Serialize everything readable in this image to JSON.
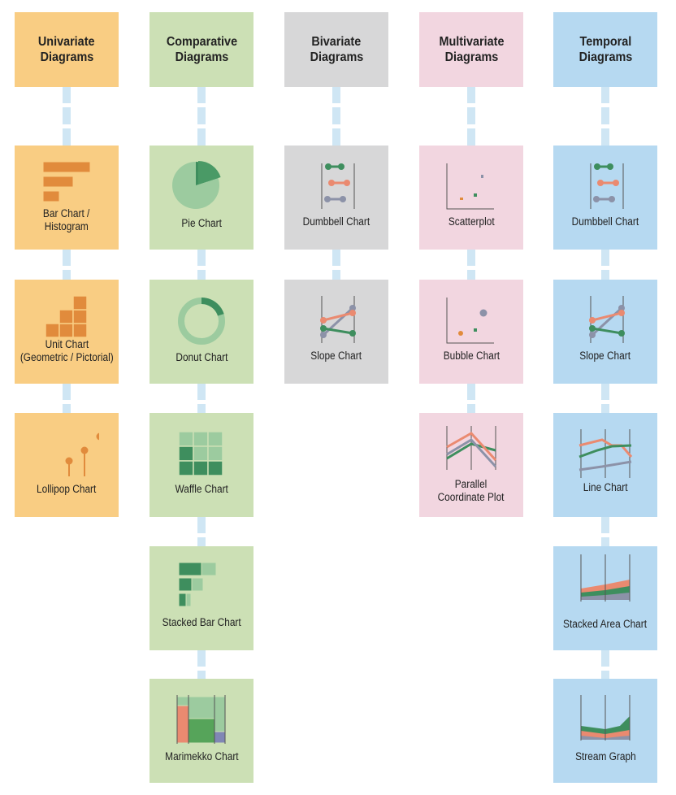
{
  "colors": {
    "univariate": "#f9cd83",
    "comparative": "#cce0b5",
    "bivariate": "#d7d7d8",
    "multivariate": "#f2d6e0",
    "temporal": "#b6d9f1",
    "orange": "#e18b3c",
    "green_dark": "#3e8e5e",
    "green_light": "#9ccb9f",
    "salmon": "#ea8a70",
    "slate": "#8c92a8",
    "connector": "#cfe6f4"
  },
  "columns": [
    {
      "header": [
        "Univariate",
        "Diagrams"
      ],
      "items": [
        {
          "label": [
            "Bar Chart /",
            "Histogram"
          ],
          "icon": "bar-chart-icon"
        },
        {
          "label": [
            "Unit Chart",
            "(Geometric / Pictorial)"
          ],
          "icon": "unit-chart-icon"
        },
        {
          "label": [
            "Lollipop Chart"
          ],
          "icon": "lollipop-chart-icon"
        }
      ]
    },
    {
      "header": [
        "Comparative",
        "Diagrams"
      ],
      "items": [
        {
          "label": [
            "Pie Chart"
          ],
          "icon": "pie-chart-icon"
        },
        {
          "label": [
            "Donut Chart"
          ],
          "icon": "donut-chart-icon"
        },
        {
          "label": [
            "Waffle Chart"
          ],
          "icon": "waffle-chart-icon"
        },
        {
          "label": [
            "Stacked Bar Chart"
          ],
          "icon": "stacked-bar-chart-icon"
        },
        {
          "label": [
            "Marimekko Chart"
          ],
          "icon": "marimekko-chart-icon"
        }
      ]
    },
    {
      "header": [
        "Bivariate",
        "Diagrams"
      ],
      "items": [
        {
          "label": [
            "Dumbbell Chart"
          ],
          "icon": "dumbbell-chart-icon"
        },
        {
          "label": [
            "Slope Chart"
          ],
          "icon": "slope-chart-icon"
        }
      ]
    },
    {
      "header": [
        "Multivariate",
        "Diagrams"
      ],
      "items": [
        {
          "label": [
            "Scatterplot"
          ],
          "icon": "scatterplot-icon"
        },
        {
          "label": [
            "Bubble Chart"
          ],
          "icon": "bubble-chart-icon"
        },
        {
          "label": [
            "Parallel",
            "Coordinate Plot"
          ],
          "icon": "parallel-coordinate-plot-icon"
        }
      ]
    },
    {
      "header": [
        "Temporal",
        "Diagrams"
      ],
      "items": [
        {
          "label": [
            "Dumbbell Chart"
          ],
          "icon": "dumbbell-chart-icon"
        },
        {
          "label": [
            "Slope Chart"
          ],
          "icon": "slope-chart-icon"
        },
        {
          "label": [
            "Line Chart"
          ],
          "icon": "line-chart-icon"
        },
        {
          "label": [
            "Stacked Area Chart"
          ],
          "icon": "stacked-area-chart-icon"
        },
        {
          "label": [
            "Stream Graph"
          ],
          "icon": "stream-graph-icon"
        }
      ]
    }
  ]
}
